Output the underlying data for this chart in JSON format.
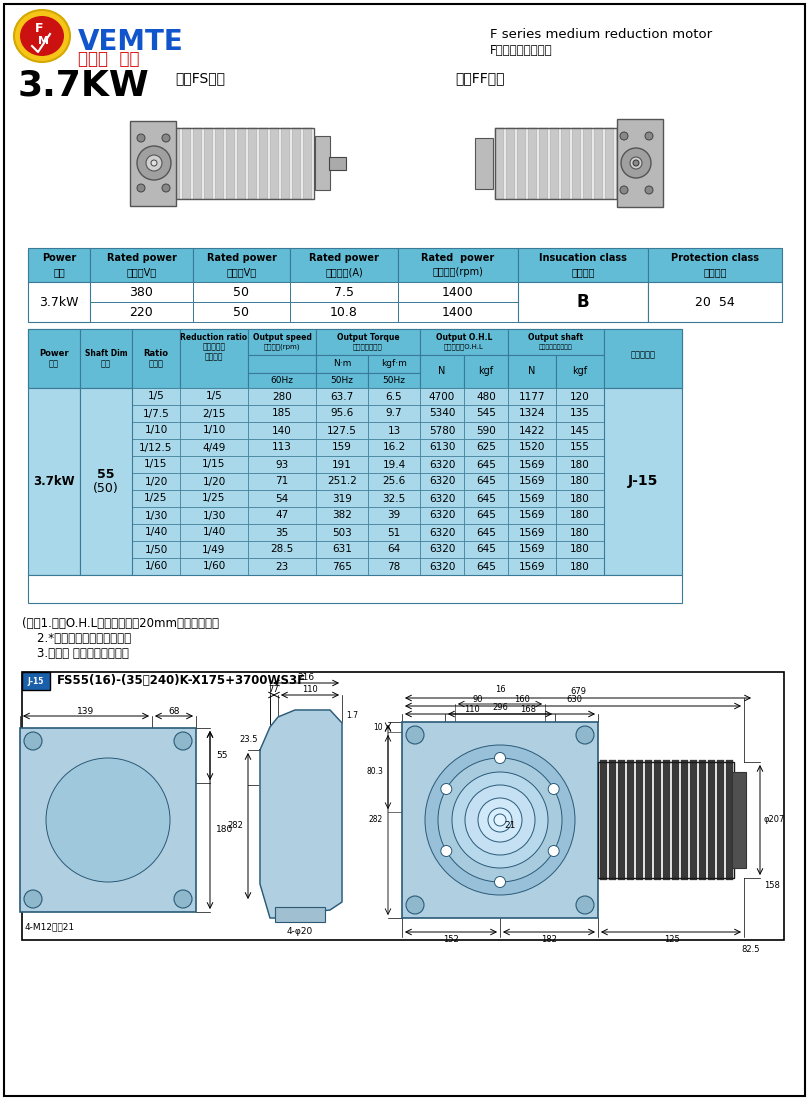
{
  "title_power": "3.7KW",
  "series_left": "中空FS系列",
  "series_right": "中实FF系列",
  "header_right1": "F series medium reduction motor",
  "header_right2": "F系列中型减速電機",
  "table1_col_headers": [
    "Power\n功率",
    "Rated power\n電壓（V）",
    "Rated power\n頻率（V）",
    "Rated power\n額定電流(A)",
    "Rated  power\n額定轉速(rpm)",
    "Insucation class\n絕縣等級",
    "Protection class\n防護等級"
  ],
  "table1_row1": [
    "3.7kW",
    "380",
    "50",
    "7.5",
    "1400",
    "B",
    "20  54"
  ],
  "table1_row2": [
    "",
    "220",
    "50",
    "10.8",
    "1400",
    "",
    ""
  ],
  "table2_data": [
    [
      "1/5",
      "1/5",
      "280",
      "63.7",
      "6.5",
      "4700",
      "480",
      "1177",
      "120"
    ],
    [
      "1/7.5",
      "2/15",
      "185",
      "95.6",
      "9.7",
      "5340",
      "545",
      "1324",
      "135"
    ],
    [
      "1/10",
      "1/10",
      "140",
      "127.5",
      "13",
      "5780",
      "590",
      "1422",
      "145"
    ],
    [
      "1/12.5",
      "4/49",
      "113",
      "159",
      "16.2",
      "6130",
      "625",
      "1520",
      "155"
    ],
    [
      "1/15",
      "1/15",
      "93",
      "191",
      "19.4",
      "6320",
      "645",
      "1569",
      "180"
    ],
    [
      "1/20",
      "1/20",
      "71",
      "251.2",
      "25.6",
      "6320",
      "645",
      "1569",
      "180"
    ],
    [
      "1/25",
      "1/25",
      "54",
      "319",
      "32.5",
      "6320",
      "645",
      "1569",
      "180"
    ],
    [
      "1/30",
      "1/30",
      "47",
      "382",
      "39",
      "6320",
      "645",
      "1569",
      "180"
    ],
    [
      "1/40",
      "1/40",
      "35",
      "503",
      "51",
      "6320",
      "645",
      "1569",
      "180"
    ],
    [
      "1/50",
      "1/49",
      "28.5",
      "631",
      "64",
      "6320",
      "645",
      "1569",
      "180"
    ],
    [
      "1/60",
      "1/60",
      "23",
      "765",
      "78",
      "6320",
      "645",
      "1569",
      "180"
    ]
  ],
  "notes": [
    "(注）1.容許O.H.L為輸出軸端适20mm位置的數値。",
    "    2.*標記為轉矩力可變機型。",
    "    3.括號（ ）為實心軸軸徑。"
  ],
  "drawing_title": "FS55(16)-(35～240)K-X175+3700WS3F",
  "bg_header": "#62bcd6",
  "bg_data": "#a8d8ea",
  "bg_subheader": "#7ecadc",
  "border": "#3a7a96"
}
